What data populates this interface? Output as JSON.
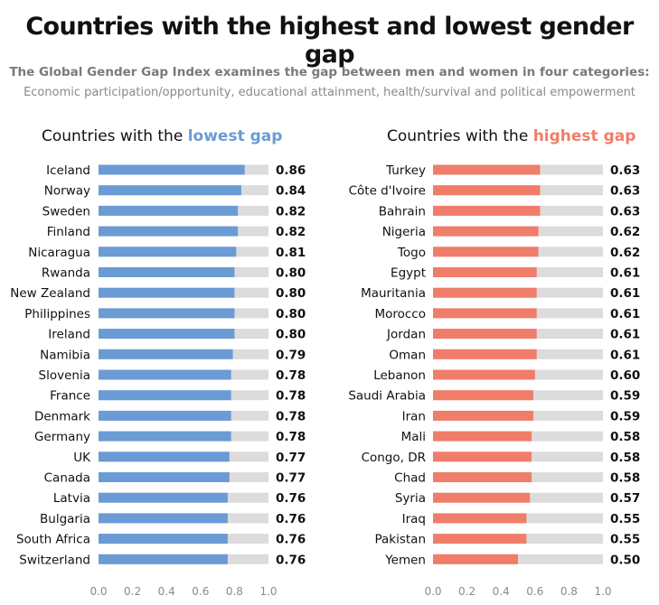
{
  "title": "Countries with the highest and lowest gender gap",
  "subtitle_line1": "The Global Gender Gap Index examines the gap between men and women in four categories:",
  "subtitle_line2": "Economic participation/opportunity, educational attainment, health/survival and political empowerment",
  "colors": {
    "low": "#6a9bd4",
    "high": "#f07d69",
    "track": "#dcdcdc"
  },
  "chart_data": [
    {
      "type": "bar",
      "orientation": "horizontal",
      "title_prefix": "Countries with the ",
      "title_highlight": "lowest gap",
      "categories": [
        "Iceland",
        "Norway",
        "Sweden",
        "Finland",
        "Nicaragua",
        "Rwanda",
        "New Zealand",
        "Philippines",
        "Ireland",
        "Namibia",
        "Slovenia",
        "France",
        "Denmark",
        "Germany",
        "UK",
        "Canada",
        "Latvia",
        "Bulgaria",
        "South Africa",
        "Switzerland"
      ],
      "values": [
        0.86,
        0.84,
        0.82,
        0.82,
        0.81,
        0.8,
        0.8,
        0.8,
        0.8,
        0.79,
        0.78,
        0.78,
        0.78,
        0.78,
        0.77,
        0.77,
        0.76,
        0.76,
        0.76,
        0.76
      ],
      "value_labels": [
        "0.86",
        "0.84",
        "0.82",
        "0.82",
        "0.81",
        "0.80",
        "0.80",
        "0.80",
        "0.80",
        "0.79",
        "0.78",
        "0.78",
        "0.78",
        "0.78",
        "0.77",
        "0.77",
        "0.76",
        "0.76",
        "0.76",
        "0.76"
      ],
      "xlim": [
        0,
        1.0
      ],
      "ticks": [
        "0.0",
        "0.2",
        "0.4",
        "0.6",
        "0.8",
        "1.0"
      ]
    },
    {
      "type": "bar",
      "orientation": "horizontal",
      "title_prefix": "Countries with the ",
      "title_highlight": "highest gap",
      "categories": [
        "Turkey",
        "Côte d'Ivoire",
        "Bahrain",
        "Nigeria",
        "Togo",
        "Egypt",
        "Mauritania",
        "Morocco",
        "Jordan",
        "Oman",
        "Lebanon",
        "Saudi Arabia",
        "Iran",
        "Mali",
        "Congo, DR",
        "Chad",
        "Syria",
        "Iraq",
        "Pakistan",
        "Yemen"
      ],
      "values": [
        0.63,
        0.63,
        0.63,
        0.62,
        0.62,
        0.61,
        0.61,
        0.61,
        0.61,
        0.61,
        0.6,
        0.59,
        0.59,
        0.58,
        0.58,
        0.58,
        0.57,
        0.55,
        0.55,
        0.5
      ],
      "value_labels": [
        "0.63",
        "0.63",
        "0.63",
        "0.62",
        "0.62",
        "0.61",
        "0.61",
        "0.61",
        "0.61",
        "0.61",
        "0.60",
        "0.59",
        "0.59",
        "0.58",
        "0.58",
        "0.58",
        "0.57",
        "0.55",
        "0.55",
        "0.50"
      ],
      "xlim": [
        0,
        1.0
      ],
      "ticks": [
        "0.0",
        "0.2",
        "0.4",
        "0.6",
        "0.8",
        "1.0"
      ]
    }
  ]
}
